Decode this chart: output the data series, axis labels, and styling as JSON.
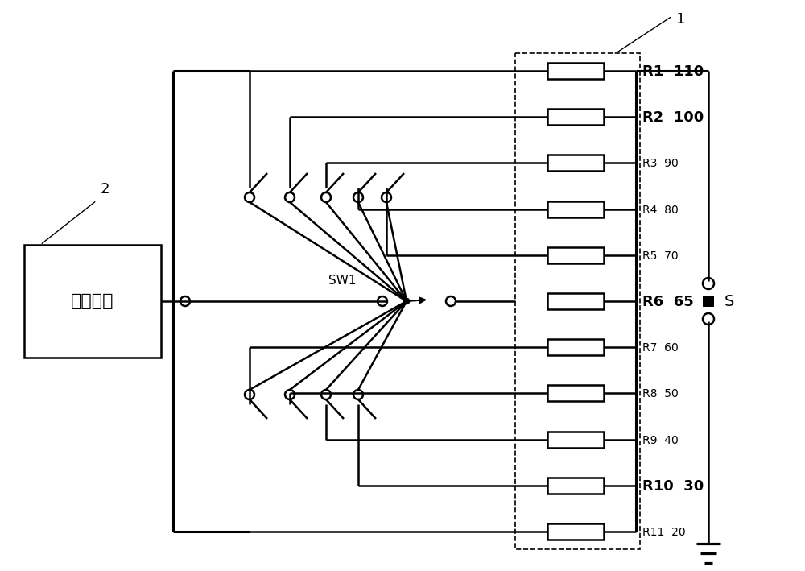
{
  "bg_color": "#ffffff",
  "resistors": [
    {
      "label": "R1",
      "value": "110",
      "bold": true
    },
    {
      "label": "R2",
      "value": "100",
      "bold": true
    },
    {
      "label": "R3",
      "value": "90",
      "bold": false
    },
    {
      "label": "R4",
      "value": "80",
      "bold": false
    },
    {
      "label": "R5",
      "value": "70",
      "bold": false
    },
    {
      "label": "R6",
      "value": "65",
      "bold": true
    },
    {
      "label": "R7",
      "value": "60",
      "bold": false
    },
    {
      "label": "R8",
      "value": "50",
      "bold": false
    },
    {
      "label": "R9",
      "value": "40",
      "bold": false
    },
    {
      "label": "R10",
      "value": "30",
      "bold": true
    },
    {
      "label": "R11",
      "value": "20",
      "bold": false
    }
  ],
  "source_label": "标定电源",
  "switch_label": "SW1",
  "switch_S_label": "S",
  "annotation1": "1",
  "annotation2": "2",
  "lw": 1.8
}
